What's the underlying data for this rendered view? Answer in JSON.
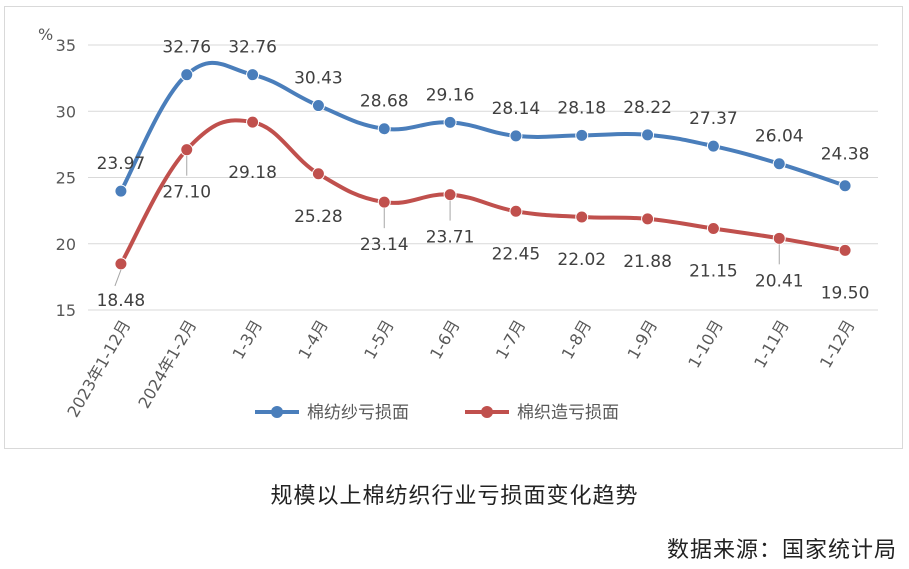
{
  "chart_data": {
    "type": "line",
    "title": "",
    "xlabel": "",
    "ylabel": "%",
    "ylim": [
      15,
      35
    ],
    "yticks": [
      "15",
      "20",
      "25",
      "30",
      "35"
    ],
    "grid": true,
    "legend_position": "bottom",
    "categories": [
      "2023年1-12月",
      "2024年1-2月",
      "1-3月",
      "1-4月",
      "1-5月",
      "1-6月",
      "1-7月",
      "1-8月",
      "1-9月",
      "1-10月",
      "1-11月",
      "1-12月"
    ],
    "series": [
      {
        "name": "棉纺纱亏损面",
        "color": "#4a7ebb",
        "values": [
          23.97,
          32.76,
          32.76,
          30.43,
          28.68,
          29.16,
          28.14,
          28.18,
          28.22,
          27.37,
          26.04,
          24.38
        ],
        "labels": [
          "23.97",
          "32.76",
          "32.76",
          "30.43",
          "28.68",
          "29.16",
          "28.14",
          "28.18",
          "28.22",
          "27.37",
          "26.04",
          "24.38"
        ]
      },
      {
        "name": "棉织造亏损面",
        "color": "#c0504d",
        "values": [
          18.48,
          27.1,
          29.18,
          25.28,
          23.14,
          23.71,
          22.45,
          22.02,
          21.88,
          21.15,
          20.41,
          19.5
        ],
        "labels": [
          "18.48",
          "27.10",
          "29.18",
          "25.28",
          "23.14",
          "23.71",
          "22.45",
          "22.02",
          "21.88",
          "21.15",
          "20.41",
          "19.50"
        ]
      }
    ]
  },
  "caption": "规模以上棉纺织行业亏损面变化趋势",
  "source": "数据来源：国家统计局"
}
